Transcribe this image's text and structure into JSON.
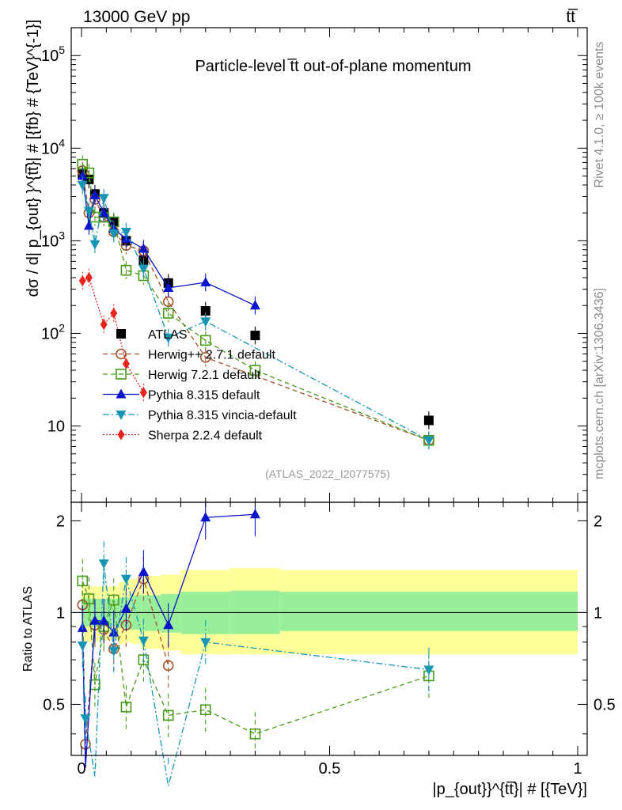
{
  "header": {
    "energy_label": "13000 GeV pp",
    "process_label": "tt̅",
    "plot_title": "Particle-level t̅t out-of-plane momentum",
    "side_version": "Rivet 4.1.0, ≥ 100k events",
    "side_source": "mcplots.cern.ch [arXiv:1306.3436]",
    "analysis_id": "(ATLAS_2022_I2077575)"
  },
  "colors": {
    "atlas": "#000000",
    "herwigpp": "#a0522d",
    "herwig7": "#4a9a1a",
    "pythia": "#0a14c8",
    "vincia": "#1796b3",
    "sherpa": "#e8231c",
    "band_outer": "#ffff99",
    "band_inner": "#99ee99"
  },
  "chart_data": [
    {
      "type": "line",
      "panel": "main",
      "yscale": "log",
      "xlim": [
        0,
        1
      ],
      "ylim": [
        1.5,
        200000
      ],
      "ylabel": "dσ / d| p_{out} }^{tt̅}| # [{fb} # {TeV}^{-1}]",
      "y_tick_labels": [
        "10",
        "10^2",
        "10^3",
        "10^4",
        "10^5"
      ],
      "series": [
        {
          "name": "ATLAS",
          "style": "data",
          "x": [
            0.002,
            0.015,
            0.027,
            0.045,
            0.065,
            0.09,
            0.125,
            0.175,
            0.25,
            0.35,
            0.7
          ],
          "values": [
            5300,
            4600,
            3200,
            2000,
            1600,
            1000,
            620,
            350,
            175,
            95,
            11.5
          ]
        },
        {
          "name": "Herwig++ 2.7.1 default",
          "x": [
            0.002,
            0.015,
            0.027,
            0.045,
            0.065,
            0.09,
            0.125,
            0.175,
            0.25,
            0.7
          ],
          "values": [
            5700,
            2000,
            2800,
            1800,
            1250,
            890,
            780,
            220,
            55,
            7.0
          ]
        },
        {
          "name": "Herwig 7.2.1 default",
          "x": [
            0.002,
            0.015,
            0.027,
            0.045,
            0.065,
            0.09,
            0.125,
            0.175,
            0.25,
            0.35,
            0.7
          ],
          "values": [
            6700,
            5400,
            1800,
            1800,
            1600,
            480,
            420,
            165,
            84,
            40,
            7.0
          ]
        },
        {
          "name": "Pythia 8.315 default",
          "x": [
            0.002,
            0.015,
            0.027,
            0.045,
            0.065,
            0.09,
            0.125,
            0.175,
            0.25,
            0.35
          ],
          "values": [
            5000,
            1450,
            3100,
            2000,
            1350,
            1050,
            820,
            310,
            355,
            200
          ]
        },
        {
          "name": "Pythia 8.315 vincia-default",
          "x": [
            0.002,
            0.015,
            0.027,
            0.045,
            0.065,
            0.09,
            0.125,
            0.175,
            0.25,
            0.7
          ],
          "values": [
            4000,
            2100,
            920,
            2900,
            1200,
            1250,
            500,
            90,
            135,
            7.0
          ]
        },
        {
          "name": "Sherpa 2.2.4 default",
          "x": [
            0.002,
            0.015,
            0.045,
            0.065,
            0.09,
            0.125
          ],
          "values": [
            370,
            400,
            125,
            165,
            47,
            23
          ]
        }
      ]
    },
    {
      "type": "line",
      "panel": "ratio",
      "xlim": [
        0,
        1
      ],
      "ylim": [
        0.34,
        2.3
      ],
      "xlabel": "|p_{out}}^{tt̅}| # [{TeV}]",
      "ylabel": "Ratio to ATLAS",
      "x_tick_labels": [
        "0",
        "0.5",
        "1"
      ],
      "y_tick_labels": [
        "0.5",
        "1",
        "2"
      ],
      "band_edges": [
        0,
        0.04,
        0.06,
        0.075,
        0.09,
        0.1,
        0.12,
        0.16,
        0.2,
        0.3,
        0.4,
        1.0
      ],
      "band_outer": [
        [
          0.8,
          1.22
        ],
        [
          0.81,
          1.22
        ],
        [
          0.82,
          1.22
        ],
        [
          0.79,
          1.26
        ],
        [
          0.8,
          1.28
        ],
        [
          0.79,
          1.29
        ],
        [
          0.76,
          1.32
        ],
        [
          0.75,
          1.33
        ],
        [
          0.73,
          1.38
        ],
        [
          0.73,
          1.4
        ],
        [
          0.73,
          1.38
        ]
      ],
      "band_inner": [
        [
          0.9,
          1.11
        ],
        [
          0.9,
          1.11
        ],
        [
          0.9,
          1.11
        ],
        [
          0.89,
          1.12
        ],
        [
          0.88,
          1.12
        ],
        [
          0.88,
          1.14
        ],
        [
          0.87,
          1.14
        ],
        [
          0.86,
          1.15
        ],
        [
          0.85,
          1.17
        ],
        [
          0.85,
          1.18
        ],
        [
          0.87,
          1.17
        ]
      ],
      "series": [
        {
          "name": "Herwig++ 2.7.1 default",
          "x": [
            0.002,
            0.008,
            0.027,
            0.045,
            0.065,
            0.09,
            0.125,
            0.175
          ],
          "values": [
            1.06,
            0.37,
            0.91,
            0.88,
            0.76,
            0.91,
            1.29,
            0.67
          ]
        },
        {
          "name": "Herwig 7.2.1 default",
          "x": [
            0.002,
            0.015,
            0.027,
            0.045,
            0.065,
            0.09,
            0.125,
            0.175,
            0.25,
            0.35,
            0.7
          ],
          "values": [
            1.27,
            1.11,
            0.58,
            0.9,
            1.1,
            0.49,
            0.7,
            0.46,
            0.48,
            0.4,
            0.62
          ]
        },
        {
          "name": "Pythia 8.315 default",
          "x": [
            0.002,
            0.008,
            0.027,
            0.045,
            0.065,
            0.09,
            0.125,
            0.175,
            0.25,
            0.35
          ],
          "values": [
            0.89,
            0.31,
            0.94,
            0.94,
            0.86,
            1.03,
            1.36,
            0.91,
            2.05,
            2.1
          ]
        },
        {
          "name": "Pythia 8.315 vincia-default",
          "x": [
            0.002,
            0.008,
            0.027,
            0.045,
            0.065,
            0.09,
            0.125,
            0.175,
            0.25,
            0.7
          ],
          "values": [
            0.78,
            0.45,
            0.29,
            1.45,
            0.75,
            1.29,
            0.81,
            0.27,
            0.8,
            0.65
          ]
        }
      ]
    }
  ]
}
